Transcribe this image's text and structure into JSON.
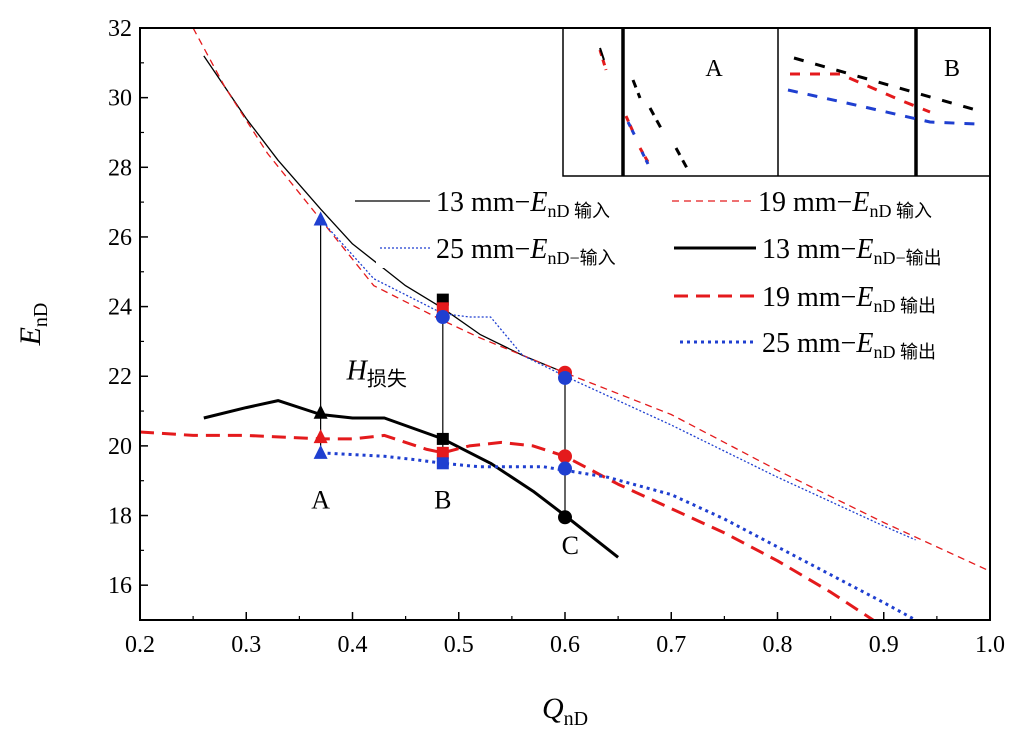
{
  "chart_data": {
    "type": "line",
    "title": "",
    "xlabel": "Q",
    "xlabel_sub": "nD",
    "ylabel": "E",
    "ylabel_sub": "nD",
    "xlim": [
      0.2,
      1.0
    ],
    "ylim": [
      15,
      32
    ],
    "xticks": [
      "0.2",
      "0.3",
      "0.4",
      "0.5",
      "0.6",
      "0.7",
      "0.8",
      "0.9",
      "1.0"
    ],
    "yticks": [
      "16",
      "18",
      "20",
      "22",
      "24",
      "26",
      "28",
      "30",
      "32"
    ],
    "grid": false,
    "legend_position": "right",
    "series": [
      {
        "key": "in13",
        "name_pre": "13 mm−",
        "name_sub": "nD",
        "name_post": " 输入",
        "color": "#000000",
        "style": "solid",
        "width": 1.3,
        "x": [
          0.26,
          0.3,
          0.33,
          0.37,
          0.4,
          0.45,
          0.485,
          0.52,
          0.56,
          0.6
        ],
        "y": [
          31.2,
          29.4,
          28.2,
          26.8,
          25.8,
          24.6,
          23.95,
          23.2,
          22.6,
          22.1
        ]
      },
      {
        "key": "in19",
        "name_pre": "19 mm−",
        "name_sub": "nD",
        "name_post": " 输入",
        "color": "#e41a1c",
        "style": "dashed",
        "width": 1.3,
        "x": [
          0.25,
          0.28,
          0.32,
          0.37,
          0.42,
          0.485,
          0.52,
          0.56,
          0.6,
          0.7,
          0.8,
          0.9,
          1.0
        ],
        "y": [
          32,
          30.3,
          28.4,
          26.5,
          24.6,
          23.6,
          23.1,
          22.6,
          22.1,
          20.9,
          19.3,
          17.8,
          16.4
        ]
      },
      {
        "key": "in25",
        "name_pre": "25 mm−",
        "name_sub": "nD−输入",
        "name_post": "",
        "color": "#1f3fd0",
        "style": "dotted",
        "width": 1.3,
        "x": [
          0.37,
          0.42,
          0.485,
          0.51,
          0.53,
          0.56,
          0.6,
          0.7,
          0.8,
          0.9,
          0.93
        ],
        "y": [
          26.5,
          24.8,
          23.8,
          23.7,
          23.7,
          22.6,
          22.0,
          20.6,
          19.1,
          17.7,
          17.3
        ]
      },
      {
        "key": "out13",
        "name_pre": "13 mm−",
        "name_sub": "nD−输出",
        "name_post": "",
        "color": "#000000",
        "style": "solid",
        "width": 3,
        "x": [
          0.26,
          0.3,
          0.33,
          0.37,
          0.4,
          0.43,
          0.485,
          0.53,
          0.57,
          0.6,
          0.65
        ],
        "y": [
          20.8,
          21.1,
          21.3,
          20.9,
          20.8,
          20.8,
          20.2,
          19.5,
          18.7,
          18.0,
          16.8
        ]
      },
      {
        "key": "out19",
        "name_pre": "19 mm−",
        "name_sub": "nD",
        "name_post": " 输出",
        "color": "#e41a1c",
        "style": "dashed",
        "width": 3,
        "x": [
          0.2,
          0.25,
          0.3,
          0.37,
          0.4,
          0.43,
          0.47,
          0.485,
          0.51,
          0.54,
          0.57,
          0.6,
          0.65,
          0.7,
          0.75,
          0.8,
          0.85,
          0.89
        ],
        "y": [
          20.4,
          20.3,
          20.3,
          20.2,
          20.2,
          20.3,
          19.9,
          19.8,
          20.0,
          20.1,
          20.0,
          19.7,
          18.9,
          18.2,
          17.5,
          16.7,
          15.8,
          15
        ]
      },
      {
        "key": "out25",
        "name_pre": "25 mm−",
        "name_sub": "nD",
        "name_post": " 输出",
        "color": "#1f3fd0",
        "style": "dotted",
        "width": 3,
        "x": [
          0.37,
          0.4,
          0.43,
          0.46,
          0.485,
          0.52,
          0.55,
          0.58,
          0.6,
          0.64,
          0.7,
          0.75,
          0.8,
          0.85,
          0.9,
          0.93
        ],
        "y": [
          19.8,
          19.75,
          19.7,
          19.6,
          19.5,
          19.4,
          19.4,
          19.4,
          19.3,
          19.1,
          18.6,
          17.9,
          17.1,
          16.3,
          15.5,
          15
        ]
      }
    ],
    "markers": [
      {
        "x": 0.37,
        "y": 26.5,
        "shape": "triangle",
        "color": "#1f3fd0"
      },
      {
        "x": 0.37,
        "y": 20.95,
        "shape": "triangle",
        "color": "#000000"
      },
      {
        "x": 0.37,
        "y": 20.25,
        "shape": "triangle",
        "color": "#e41a1c"
      },
      {
        "x": 0.37,
        "y": 19.8,
        "shape": "triangle",
        "color": "#1f3fd0"
      },
      {
        "x": 0.485,
        "y": 24.2,
        "shape": "square",
        "color": "#000000"
      },
      {
        "x": 0.485,
        "y": 23.95,
        "shape": "square",
        "color": "#e41a1c"
      },
      {
        "x": 0.485,
        "y": 23.7,
        "shape": "circle",
        "color": "#1f3fd0"
      },
      {
        "x": 0.485,
        "y": 20.2,
        "shape": "square",
        "color": "#000000"
      },
      {
        "x": 0.485,
        "y": 19.8,
        "shape": "square",
        "color": "#e41a1c"
      },
      {
        "x": 0.485,
        "y": 19.5,
        "shape": "square",
        "color": "#1f3fd0"
      },
      {
        "x": 0.6,
        "y": 22.1,
        "shape": "circle",
        "color": "#e41a1c"
      },
      {
        "x": 0.6,
        "y": 21.95,
        "shape": "circle",
        "color": "#1f3fd0"
      },
      {
        "x": 0.6,
        "y": 19.7,
        "shape": "circle",
        "color": "#e41a1c"
      },
      {
        "x": 0.6,
        "y": 19.35,
        "shape": "circle",
        "color": "#1f3fd0"
      },
      {
        "x": 0.6,
        "y": 17.95,
        "shape": "circle",
        "color": "#000000"
      }
    ],
    "vlines": [
      {
        "x": 0.37,
        "y1": 19.8,
        "y2": 26.5
      },
      {
        "x": 0.485,
        "y1": 19.5,
        "y2": 24.2
      },
      {
        "x": 0.6,
        "y1": 17.95,
        "y2": 22.1
      }
    ],
    "annotations": [
      {
        "key": "A",
        "text": "A",
        "x": 0.37,
        "y": 18.2
      },
      {
        "key": "B",
        "text": "B",
        "x": 0.485,
        "y": 18.2
      },
      {
        "key": "C",
        "text": "C",
        "x": 0.605,
        "y": 16.9
      }
    ],
    "loss_label": {
      "main": "H",
      "sub": "损失",
      "x": 0.37,
      "y": 21.9
    },
    "inset": {
      "label_a": "A",
      "label_b": "B"
    },
    "element_colors": {
      "axes": "#000000",
      "red": "#e41a1c",
      "blue": "#1f3fd0"
    }
  }
}
